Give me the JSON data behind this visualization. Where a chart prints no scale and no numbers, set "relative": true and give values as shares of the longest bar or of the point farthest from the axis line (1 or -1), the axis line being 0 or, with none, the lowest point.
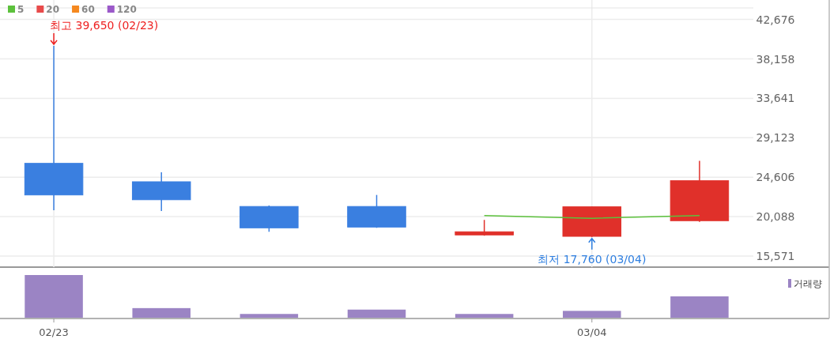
{
  "chart_data": [
    {
      "type": "candlestick",
      "categories": [
        "02/23",
        null,
        null,
        null,
        null,
        "03/04",
        null
      ],
      "ohlc": [
        [
          26190,
          39650,
          20820,
          22570
        ],
        [
          24080,
          25160,
          20730,
          22020
        ],
        [
          21250,
          21360,
          18350,
          18800
        ],
        [
          21250,
          22570,
          18800,
          18890
        ],
        [
          17990,
          19710,
          17900,
          18350
        ],
        [
          17830,
          21210,
          17760,
          21210
        ],
        [
          19620,
          26490,
          19490,
          24200
        ]
      ],
      "colors": [
        "#3a7fe0",
        "#3a7fe0",
        "#3a7fe0",
        "#3a7fe0",
        "#e0302a",
        "#e0302a",
        "#e0302a"
      ],
      "series": [
        {
          "name": "5",
          "type": "line",
          "color": "#5cc13c",
          "values": [
            null,
            null,
            null,
            null,
            20200,
            19900,
            20200
          ]
        },
        {
          "name": "20",
          "type": "line",
          "color": "#e84a4a",
          "values": [
            null,
            null,
            null,
            null,
            null,
            null,
            null
          ]
        },
        {
          "name": "60",
          "type": "line",
          "color": "#f5881f",
          "values": [
            null,
            null,
            null,
            null,
            null,
            null,
            null
          ]
        },
        {
          "name": "120",
          "type": "line",
          "color": "#9b59c9",
          "values": [
            null,
            null,
            null,
            null,
            null,
            null,
            null
          ]
        }
      ],
      "ylim": [
        14300,
        44000
      ],
      "yticks": [
        {
          "value": 15571,
          "label": "15,571"
        },
        {
          "value": 20088,
          "label": "20,088"
        },
        {
          "value": 24606,
          "label": "24,606"
        },
        {
          "value": 29123,
          "label": "29,123"
        },
        {
          "value": 33641,
          "label": "33,641"
        },
        {
          "value": 38158,
          "label": "38,158"
        },
        {
          "value": 42676,
          "label": "42,676"
        }
      ],
      "annotations": [
        {
          "text": "최고 39,650 (02/23)",
          "x": "02/23",
          "y": 39650
        },
        {
          "text": "최저 17,760 (03/04)",
          "x": "03/04",
          "y": 17760
        }
      ],
      "grid": true,
      "legend": "top left",
      "tick_labels": "y"
    },
    {
      "type": "bar",
      "categories": [
        "02/23",
        null,
        null,
        null,
        null,
        "03/04",
        null
      ],
      "relative": true,
      "series": [
        {
          "name": "거래량",
          "color": "#9b84c4",
          "values": [
            1,
            0.225,
            0.088,
            0.19,
            0.088,
            0.16,
            0.5
          ]
        }
      ],
      "legend": "top right",
      "tick_labels": "x"
    }
  ]
}
